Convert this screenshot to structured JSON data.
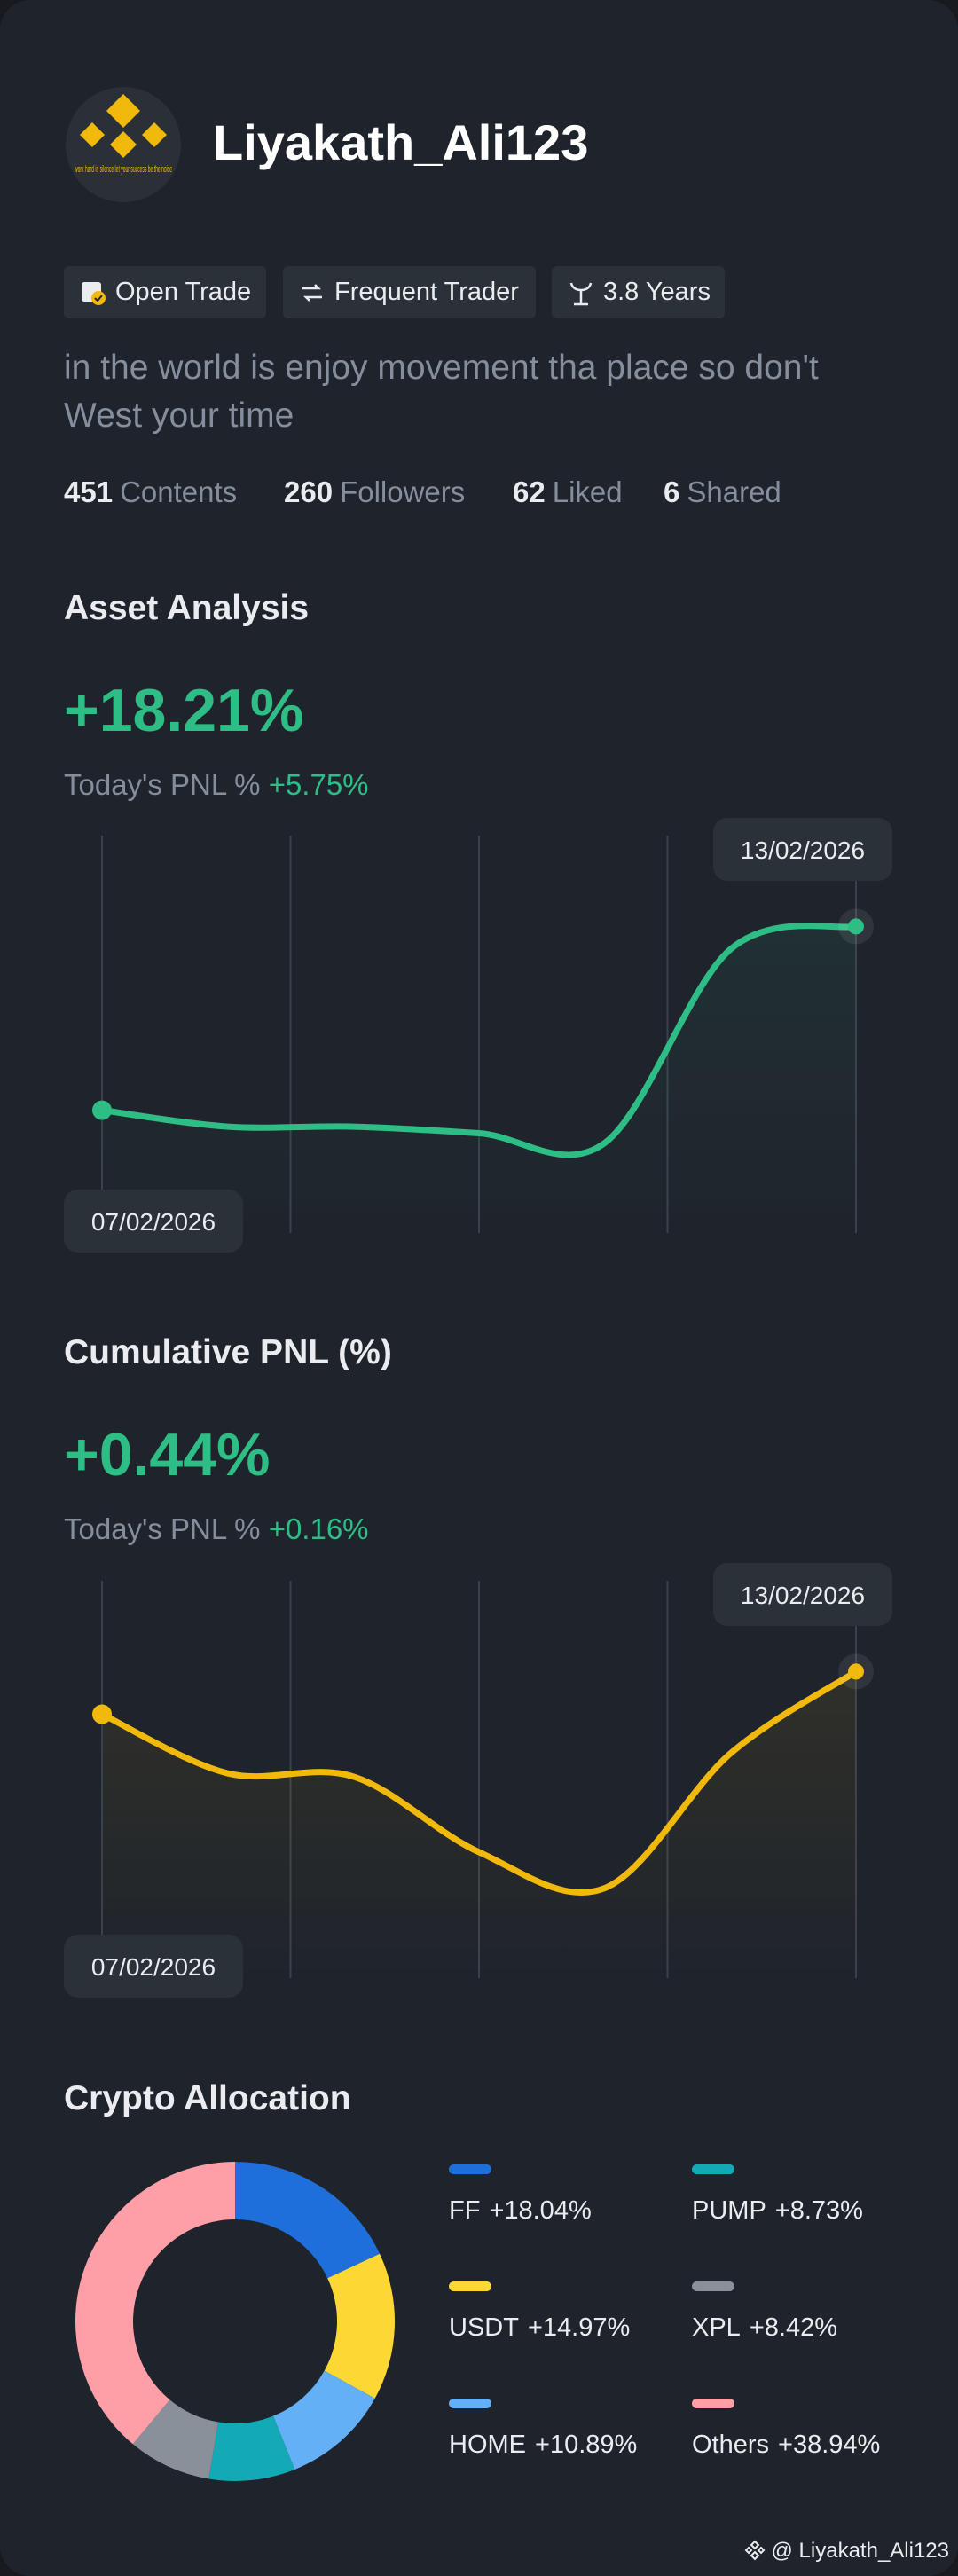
{
  "profile": {
    "name": "Liyakath_Ali123",
    "avatar_caption": "work hard in silence let your success be the noise",
    "tags": [
      "Open Trade",
      "Frequent Trader",
      "3.8 Years"
    ],
    "bio": "in the world is enjoy movement tha place so don't West your time",
    "stats": [
      {
        "count": 451,
        "label": "Contents"
      },
      {
        "count": 260,
        "label": "Followers"
      },
      {
        "count": 62,
        "label": "Liked"
      },
      {
        "count": 6,
        "label": "Shared"
      }
    ]
  },
  "chart_data": [
    {
      "type": "line",
      "title": "Asset Analysis",
      "headline": "+18.21%",
      "subtitle_label": "Today's PNL %",
      "subtitle_value": "+5.75%",
      "x": [
        "07/02/2026",
        null,
        null,
        null,
        null,
        null,
        "13/02/2026"
      ],
      "series": [
        {
          "color": "#2ebd85",
          "values": [
            32,
            27,
            27,
            25,
            22,
            81,
            88
          ]
        }
      ],
      "ylim": [
        0,
        100
      ]
    },
    {
      "type": "line",
      "title": "Cumulative PNL (%)",
      "headline": "+0.44%",
      "subtitle_label": "Today's PNL %",
      "subtitle_value": "+0.16%",
      "x": [
        "07/02/2026",
        null,
        null,
        null,
        null,
        null,
        "13/02/2026"
      ],
      "series": [
        {
          "color": "#f0b90b",
          "values": [
            75,
            57,
            56,
            33,
            22,
            63,
            88
          ]
        }
      ],
      "ylim": [
        0,
        100
      ]
    },
    {
      "type": "donut",
      "title": "Crypto Allocation",
      "categories": [
        "FF",
        "USDT",
        "HOME",
        "PUMP",
        "XPL",
        "Others"
      ],
      "values": [
        18.04,
        14.97,
        10.89,
        8.73,
        8.42,
        38.94
      ],
      "value_labels": [
        "+18.04%",
        "+14.97%",
        "+10.89%",
        "+8.73%",
        "+8.42%",
        "+38.94%"
      ],
      "colors": [
        "#1e6fd9",
        "#fdd835",
        "#64b0f6",
        "#13aab5",
        "#8a9099",
        "#fe9ea6"
      ]
    }
  ],
  "watermark": "@ Liyakath_Ali123"
}
